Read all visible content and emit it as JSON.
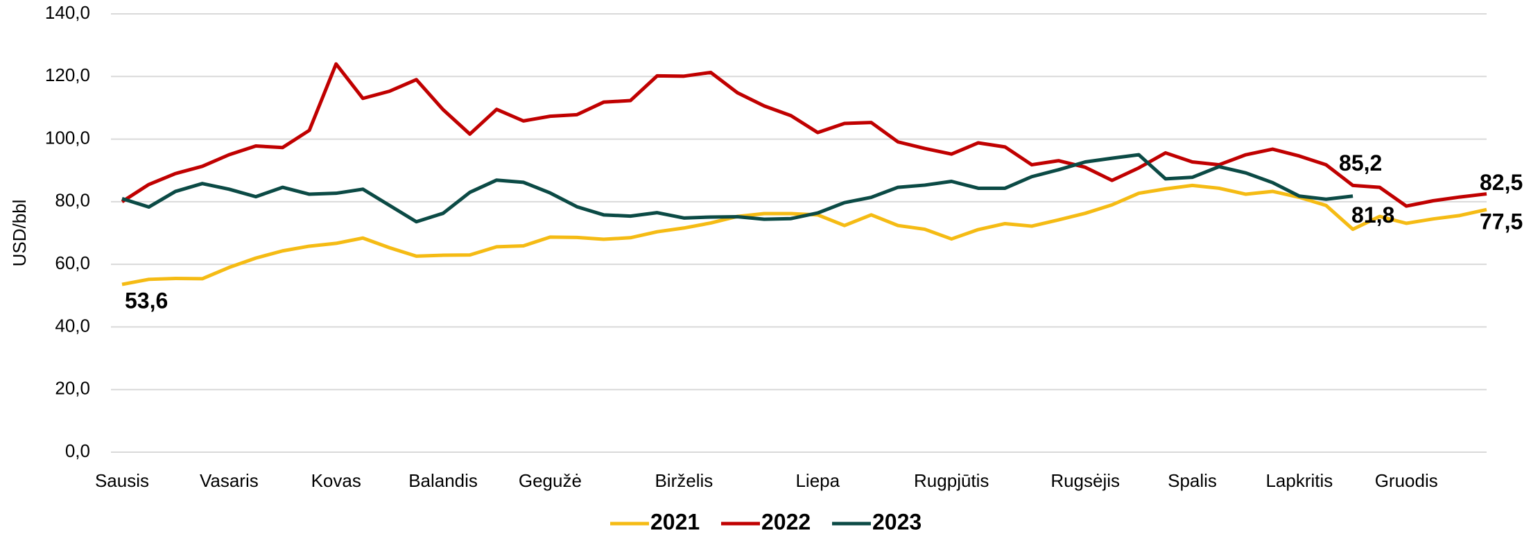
{
  "chart_data": {
    "type": "line",
    "y_label": "USD/bbl",
    "categories": [
      "Sausis",
      null,
      null,
      null,
      "Vasaris",
      null,
      null,
      null,
      "Kovas",
      null,
      null,
      null,
      "Balandis",
      null,
      null,
      null,
      "Gegužė",
      null,
      null,
      null,
      null,
      "Birželis",
      null,
      null,
      null,
      null,
      "Liepa",
      null,
      null,
      null,
      null,
      "Rugpjūtis",
      null,
      null,
      null,
      null,
      "Rugsėjis",
      null,
      null,
      null,
      "Spalis",
      null,
      null,
      null,
      "Lapkritis",
      null,
      null,
      null,
      "Gruodis",
      null,
      null,
      null
    ],
    "ylim": [
      0,
      140
    ],
    "yticks": [
      {
        "value": 0,
        "label": "0,0"
      },
      {
        "value": 20,
        "label": "20,0"
      },
      {
        "value": 40,
        "label": "40,0"
      },
      {
        "value": 60,
        "label": "60,0"
      },
      {
        "value": 80,
        "label": "80,0"
      },
      {
        "value": 100,
        "label": "100,0"
      },
      {
        "value": 120,
        "label": "120,0"
      },
      {
        "value": 140,
        "label": "140,0"
      }
    ],
    "grid": true,
    "legend": "bottom",
    "series": [
      {
        "name": "2021",
        "color": "#f5bb14",
        "values": [
          53.6,
          55.2,
          55.5,
          55.4,
          59,
          62,
          64.3,
          65.8,
          66.7,
          68.4,
          65.3,
          62.6,
          62.9,
          63,
          65.6,
          65.9,
          68.7,
          68.6,
          68,
          68.5,
          70.4,
          71.6,
          73.2,
          75.3,
          76.2,
          76.2,
          75.8,
          72.4,
          75.8,
          72.4,
          71.2,
          68.1,
          71.1,
          73,
          72.2,
          74.2,
          76.3,
          79,
          82.7,
          84.1,
          85.2,
          84.3,
          82.4,
          83.3,
          81.4,
          78.8,
          71.2,
          75.3,
          73.1,
          74.5,
          75.6,
          77.5
        ],
        "value_labels": {
          "0": "53,6",
          "51": "77,5"
        }
      },
      {
        "name": "2022",
        "color": "#c00000",
        "values": [
          80,
          85.5,
          89,
          91.3,
          95,
          97.8,
          97.3,
          102.8,
          124,
          113,
          115.3,
          119,
          109.4,
          101.6,
          109.5,
          105.8,
          107.3,
          107.8,
          111.8,
          112.3,
          120.2,
          120.1,
          121.3,
          114.8,
          110.6,
          107.5,
          102.1,
          105,
          105.3,
          99.1,
          97,
          95.2,
          98.8,
          97.5,
          91.8,
          93.1,
          91,
          86.8,
          90.8,
          95.6,
          92.7,
          91.8,
          95,
          96.8,
          94.6,
          91.8,
          85.2,
          84.6,
          78.6,
          80.3,
          81.5,
          82.5
        ],
        "value_labels": {
          "46": "85,2",
          "51": "82,5"
        }
      },
      {
        "name": "2023",
        "color": "#0b4a45",
        "values": [
          81,
          78.3,
          83.3,
          85.8,
          84,
          81.6,
          84.6,
          82.4,
          82.7,
          84,
          78.8,
          73.6,
          76.3,
          83,
          86.9,
          86.2,
          82.8,
          78.4,
          75.8,
          75.4,
          76.5,
          74.8,
          75.1,
          75.2,
          74.4,
          74.6,
          76.4,
          79.7,
          81.4,
          84.6,
          85.3,
          86.5,
          84.3,
          84.3,
          88,
          90.2,
          92.7,
          93.9,
          95,
          87.3,
          87.8,
          91.2,
          89.2,
          86.1,
          81.8,
          80.8,
          81.8,
          null,
          null,
          null,
          null,
          null
        ],
        "value_labels": {
          "46": "81,8"
        }
      }
    ]
  }
}
